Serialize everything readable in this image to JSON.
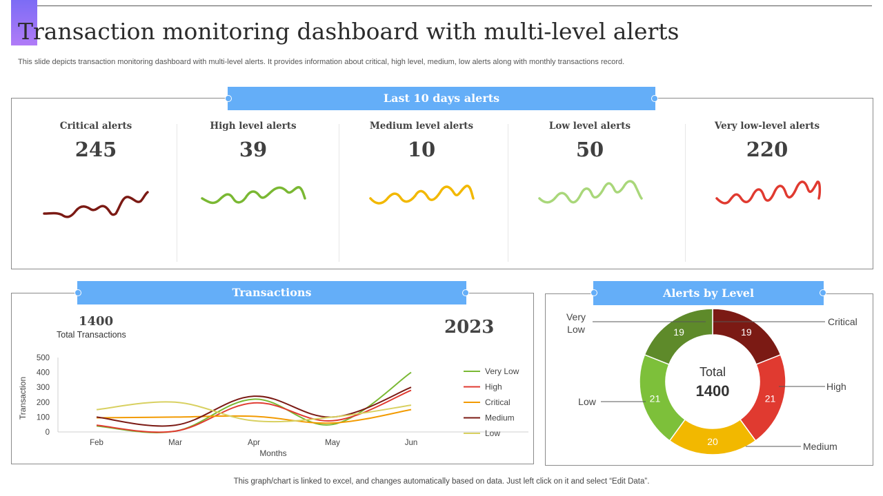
{
  "header": {
    "title": "Transaction monitoring dashboard with multi-level alerts",
    "subtitle": "This slide depicts transaction monitoring dashboard with multi-level alerts. It provides information about critical, high level, medium, low alerts along with monthly transactions record."
  },
  "alerts_panel": {
    "banner": "Last 10 days alerts",
    "items": [
      {
        "label": "Critical alerts",
        "value": "245",
        "color": "#7b1a14"
      },
      {
        "label": "High level alerts",
        "value": "39",
        "color": "#7ab833"
      },
      {
        "label": "Medium level alerts",
        "value": "10",
        "color": "#f2b800"
      },
      {
        "label": "Low level alerts",
        "value": "50",
        "color": "#a9d77a"
      },
      {
        "label": "Very low-level alerts",
        "value": "220",
        "color": "#e03a30"
      }
    ]
  },
  "transactions_panel": {
    "banner": "Transactions",
    "total_value": "1400",
    "total_label": "Total Transactions",
    "year": "2023"
  },
  "donut_panel": {
    "banner": "Alerts by Level",
    "center_label": "Total",
    "center_value": "1400"
  },
  "footer": "This graph/chart is linked to excel, and changes automatically based on data. Just left click on it and select “Edit Data”.",
  "chart_data": [
    {
      "type": "line",
      "title": "",
      "xlabel": "Months",
      "ylabel": "Transaction",
      "categories": [
        "Feb",
        "Mar",
        "Apr",
        "May",
        "Jun"
      ],
      "ylim": [
        0,
        500
      ],
      "yticks": [
        0,
        100,
        200,
        300,
        400,
        500
      ],
      "grid": false,
      "legend": "right",
      "series": [
        {
          "name": "Very Low",
          "color": "#7ab833",
          "values": [
            40,
            5,
            220,
            50,
            400
          ]
        },
        {
          "name": "High",
          "color": "#e03a30",
          "values": [
            45,
            5,
            195,
            75,
            280
          ]
        },
        {
          "name": "Critical",
          "color": "#f29a00",
          "values": [
            95,
            100,
            105,
            60,
            150
          ]
        },
        {
          "name": "Medium",
          "color": "#7b1a14",
          "values": [
            100,
            45,
            240,
            100,
            300
          ]
        },
        {
          "name": "Low",
          "color": "#d8d060",
          "values": [
            150,
            200,
            75,
            100,
            180
          ]
        }
      ]
    },
    {
      "type": "pie",
      "title": "",
      "legend": "none",
      "series": [
        {
          "name": "Critical",
          "value": 19,
          "color": "#7b1a14"
        },
        {
          "name": "High",
          "value": 21,
          "color": "#e03a30"
        },
        {
          "name": "Medium",
          "value": 20,
          "color": "#f2b800"
        },
        {
          "name": "Low",
          "value": 21,
          "color": "#7dc03a"
        },
        {
          "name": "Very Low",
          "value": 19,
          "color": "#5e8a2a"
        }
      ]
    }
  ]
}
